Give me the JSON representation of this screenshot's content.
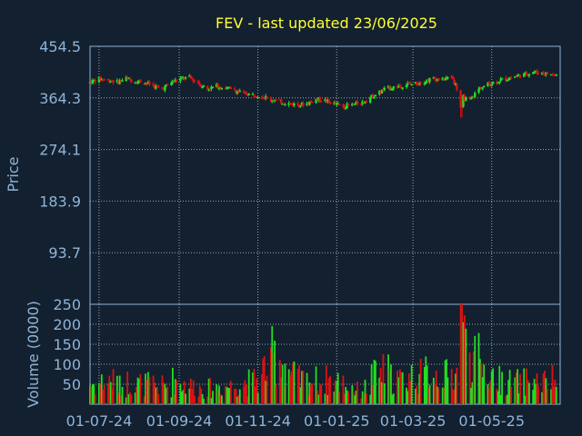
{
  "title": "FEV - last updated 23/06/2025",
  "colors": {
    "background": "#13202f",
    "axis": "#8fb4d8",
    "title": "#ffff33",
    "up": "#22dd22",
    "down": "#dd1111",
    "grid": "#c8d4e0"
  },
  "chart_data": [
    {
      "type": "candlestick",
      "ylabel": "Price",
      "ylim": [
        3.5,
        454.5
      ],
      "y_ticks": [
        "454.5",
        "364.3",
        "274.1",
        "183.9",
        "93.7"
      ],
      "x_ticks": [
        "01-07-24",
        "01-09-24",
        "01-11-24",
        "01-01-25",
        "01-03-25",
        "01-05-25"
      ],
      "grid": true,
      "series": [
        {
          "approx_close_by_week": [
            [
              "2024-06-24",
              392
            ],
            [
              "2024-07-01",
              398
            ],
            [
              "2024-07-08",
              396
            ],
            [
              "2024-07-15",
              392
            ],
            [
              "2024-07-22",
              398
            ],
            [
              "2024-07-29",
              394
            ],
            [
              "2024-08-05",
              392
            ],
            [
              "2024-08-12",
              385
            ],
            [
              "2024-08-19",
              380
            ],
            [
              "2024-08-26",
              392
            ],
            [
              "2024-09-02",
              398
            ],
            [
              "2024-09-09",
              400
            ],
            [
              "2024-09-16",
              390
            ],
            [
              "2024-09-23",
              380
            ],
            [
              "2024-09-30",
              385
            ],
            [
              "2024-10-07",
              382
            ],
            [
              "2024-10-14",
              378
            ],
            [
              "2024-10-21",
              372
            ],
            [
              "2024-10-28",
              370
            ],
            [
              "2024-11-04",
              368
            ],
            [
              "2024-11-11",
              362
            ],
            [
              "2024-11-18",
              358
            ],
            [
              "2024-11-25",
              355
            ],
            [
              "2024-12-02",
              352
            ],
            [
              "2024-12-09",
              355
            ],
            [
              "2024-12-16",
              362
            ],
            [
              "2024-12-23",
              360
            ],
            [
              "2024-12-30",
              354
            ],
            [
              "2025-01-06",
              350
            ],
            [
              "2025-01-13",
              352
            ],
            [
              "2025-01-20",
              356
            ],
            [
              "2025-01-27",
              365
            ],
            [
              "2025-02-03",
              374
            ],
            [
              "2025-02-10",
              382
            ],
            [
              "2025-02-17",
              384
            ],
            [
              "2025-02-24",
              388
            ],
            [
              "2025-03-03",
              390
            ],
            [
              "2025-03-10",
              394
            ],
            [
              "2025-03-17",
              398
            ],
            [
              "2025-03-24",
              396
            ],
            [
              "2025-03-31",
              402
            ],
            [
              "2025-04-07",
              366
            ],
            [
              "2025-04-14",
              360
            ],
            [
              "2025-04-21",
              380
            ],
            [
              "2025-04-28",
              388
            ],
            [
              "2025-05-05",
              394
            ],
            [
              "2025-05-12",
              398
            ],
            [
              "2025-05-19",
              402
            ],
            [
              "2025-05-26",
              405
            ],
            [
              "2025-06-02",
              410
            ],
            [
              "2025-06-09",
              408
            ],
            [
              "2025-06-16",
              405
            ]
          ]
        }
      ]
    },
    {
      "type": "bar",
      "ylabel": "Volume (0000)",
      "ylim": [
        0,
        250
      ],
      "y_ticks": [
        "250",
        "200",
        "150",
        "100",
        "50"
      ],
      "x_ticks": [
        "01-07-24",
        "01-09-24",
        "01-11-24",
        "01-01-25",
        "01-03-25",
        "01-05-25"
      ],
      "grid": true,
      "approx_weekly_typical_volume": [
        50,
        55,
        60,
        45,
        55,
        50,
        50,
        45,
        45,
        60,
        50,
        45,
        40,
        40,
        45,
        45,
        50,
        55,
        60,
        90,
        120,
        100,
        70,
        60,
        60,
        55,
        60,
        55,
        45,
        35,
        40,
        70,
        80,
        65,
        60,
        70,
        70,
        80,
        75,
        70,
        75,
        160,
        110,
        90,
        70,
        60,
        55,
        55,
        60,
        55,
        55,
        60
      ],
      "peak_volume": 250
    }
  ]
}
